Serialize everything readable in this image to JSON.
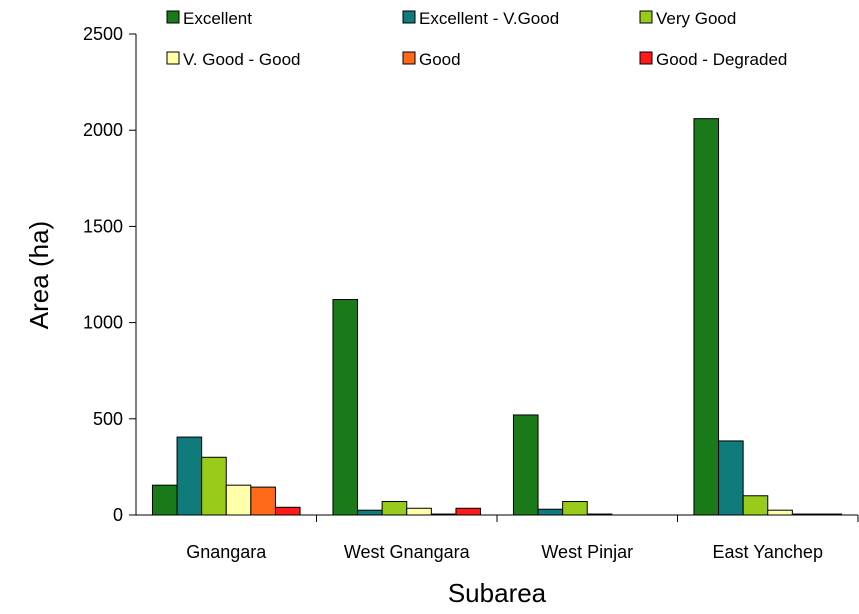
{
  "chart_data": {
    "type": "bar",
    "title": "",
    "xlabel": "Subarea",
    "ylabel": "Area (ha)",
    "categories": [
      "Gnangara",
      "West Gnangara",
      "West Pinjar",
      "East Yanchep"
    ],
    "ylim": [
      0,
      2500
    ],
    "yticks": [
      0,
      500,
      1000,
      1500,
      2000,
      2500
    ],
    "grid": false,
    "legend_position": "top",
    "series": [
      {
        "name": "Excellent",
        "color": "#1a7a1a",
        "values": [
          155,
          1120,
          520,
          2060
        ]
      },
      {
        "name": "Excellent - V.Good",
        "color": "#0f7b7b",
        "values": [
          405,
          25,
          30,
          385
        ]
      },
      {
        "name": "Very Good",
        "color": "#99cc1a",
        "values": [
          300,
          70,
          70,
          100
        ]
      },
      {
        "name": "V. Good - Good",
        "color": "#ffffaa",
        "values": [
          155,
          35,
          5,
          25
        ]
      },
      {
        "name": "Good",
        "color": "#ff6a1a",
        "values": [
          145,
          5,
          0,
          5
        ]
      },
      {
        "name": "Good - Degraded",
        "color": "#ff1a1a",
        "values": [
          40,
          35,
          0,
          5
        ]
      }
    ]
  }
}
